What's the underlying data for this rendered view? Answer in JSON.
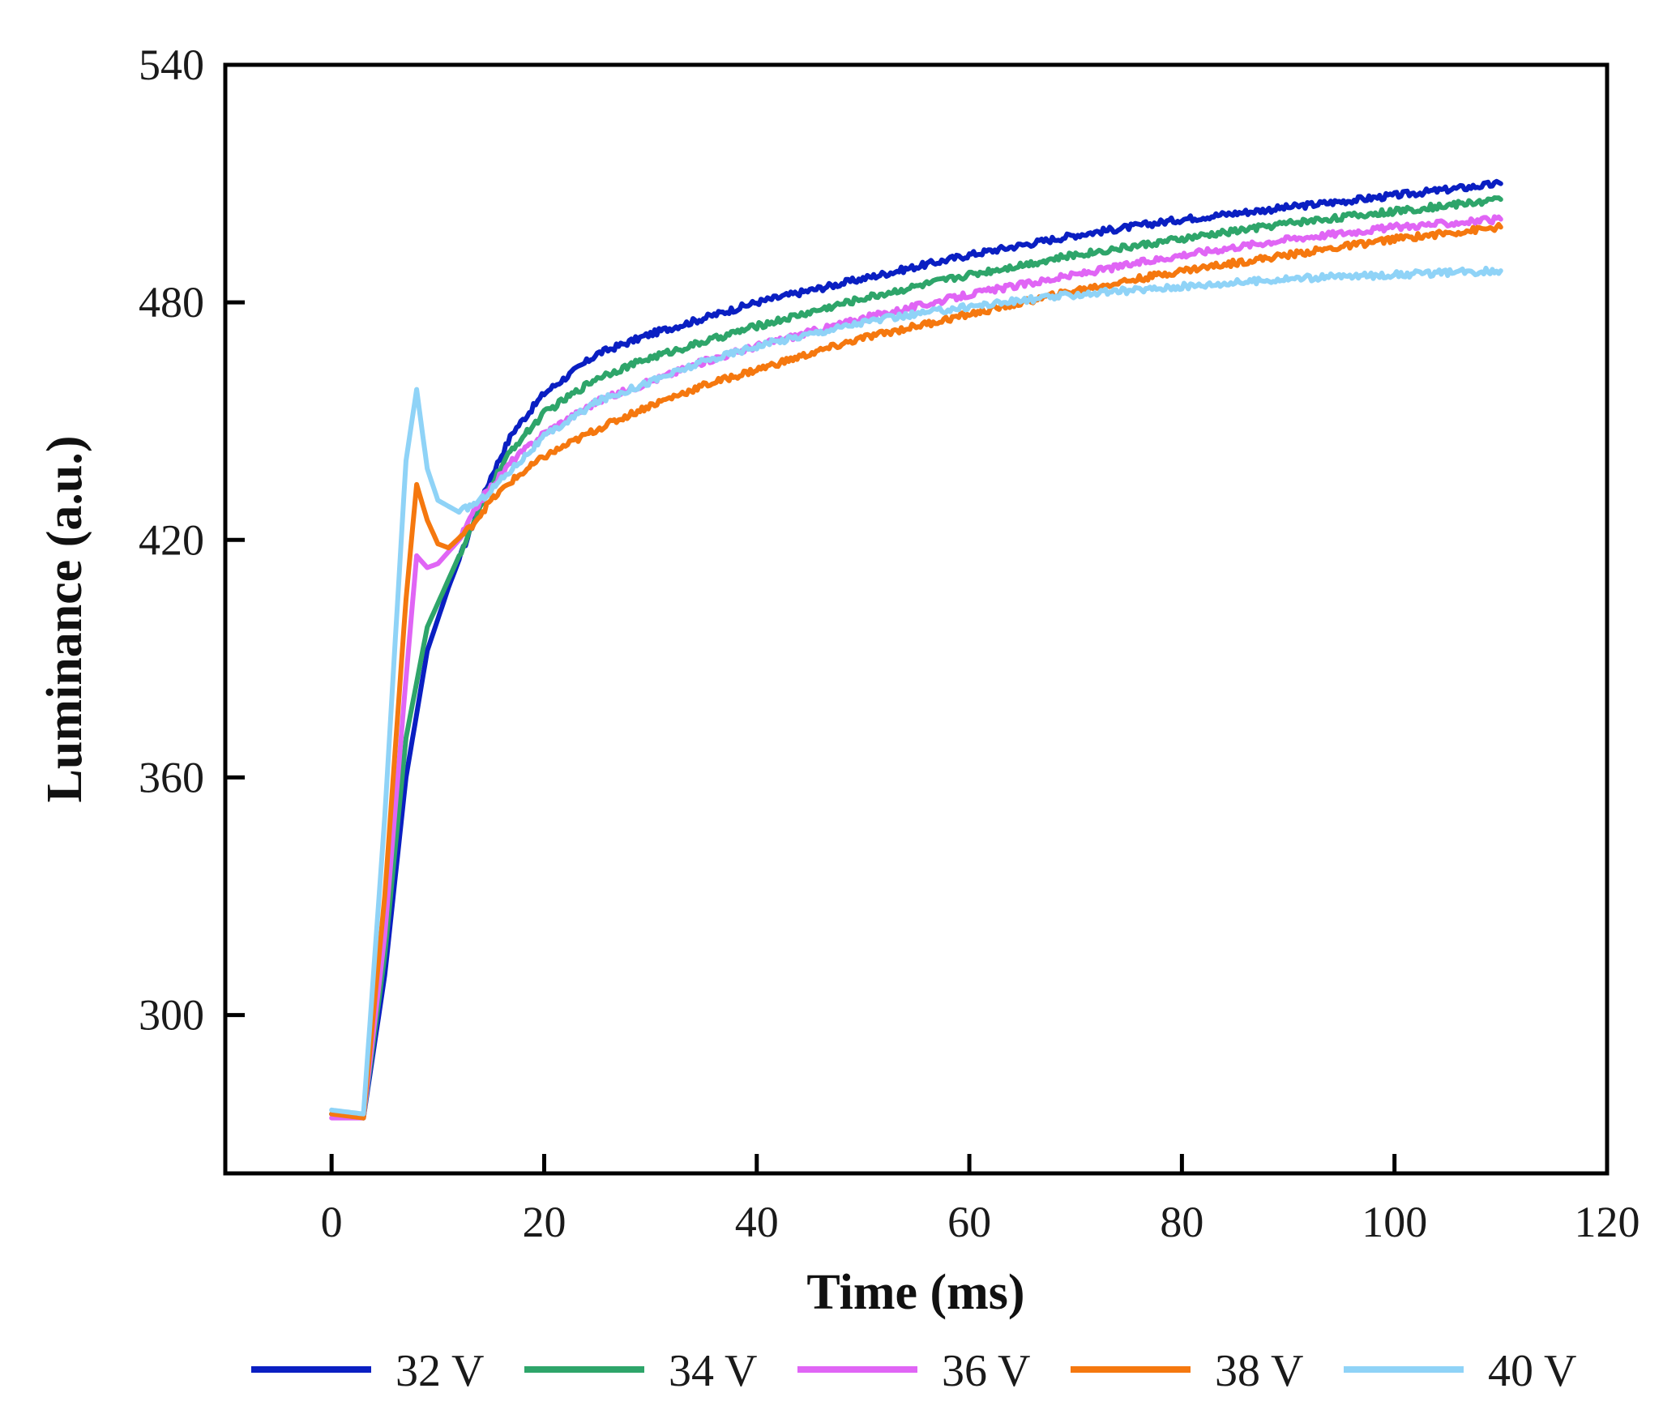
{
  "chart_data": {
    "type": "line",
    "title": "",
    "xlabel": "Time (ms)",
    "ylabel": "Luminance (a.u.)",
    "xlim": [
      -10,
      120
    ],
    "ylim": [
      260,
      540
    ],
    "xticks": [
      0,
      20,
      40,
      60,
      80,
      100,
      120
    ],
    "yticks": [
      300,
      360,
      420,
      480,
      540
    ],
    "grid": false,
    "legend_position": "bottom",
    "series": [
      {
        "name": "32 V",
        "color": "#0a1fc2",
        "points": [
          [
            0,
            275
          ],
          [
            3,
            274
          ],
          [
            5,
            310
          ],
          [
            7,
            360
          ],
          [
            9,
            392
          ],
          [
            11,
            408
          ],
          [
            13,
            422
          ],
          [
            15,
            436
          ],
          [
            17,
            447
          ],
          [
            20,
            457
          ],
          [
            25,
            467
          ],
          [
            30,
            472
          ],
          [
            35,
            476
          ],
          [
            40,
            480
          ],
          [
            50,
            486
          ],
          [
            60,
            492
          ],
          [
            70,
            497
          ],
          [
            80,
            501
          ],
          [
            90,
            504
          ],
          [
            100,
            507
          ],
          [
            110,
            510
          ]
        ]
      },
      {
        "name": "34 V",
        "color": "#2ea56a",
        "points": [
          [
            0,
            275
          ],
          [
            3,
            274
          ],
          [
            5,
            315
          ],
          [
            7,
            370
          ],
          [
            9,
            398
          ],
          [
            11,
            410
          ],
          [
            13,
            422
          ],
          [
            15,
            434
          ],
          [
            17,
            443
          ],
          [
            20,
            452
          ],
          [
            25,
            461
          ],
          [
            30,
            466
          ],
          [
            35,
            470
          ],
          [
            40,
            474
          ],
          [
            50,
            481
          ],
          [
            60,
            487
          ],
          [
            70,
            492
          ],
          [
            80,
            496
          ],
          [
            90,
            500
          ],
          [
            100,
            503
          ],
          [
            110,
            506
          ]
        ]
      },
      {
        "name": "36 V",
        "color": "#e065f5",
        "points": [
          [
            0,
            274
          ],
          [
            3,
            274
          ],
          [
            5,
            320
          ],
          [
            7,
            385
          ],
          [
            8,
            416
          ],
          [
            9,
            413
          ],
          [
            10,
            414
          ],
          [
            12,
            420
          ],
          [
            14,
            430
          ],
          [
            17,
            440
          ],
          [
            20,
            447
          ],
          [
            25,
            455
          ],
          [
            30,
            460
          ],
          [
            35,
            465
          ],
          [
            40,
            469
          ],
          [
            50,
            476
          ],
          [
            60,
            482
          ],
          [
            70,
            487
          ],
          [
            80,
            492
          ],
          [
            90,
            496
          ],
          [
            100,
            499
          ],
          [
            110,
            501
          ]
        ]
      },
      {
        "name": "38 V",
        "color": "#f5780f",
        "points": [
          [
            0,
            275
          ],
          [
            3,
            274
          ],
          [
            5,
            330
          ],
          [
            7,
            405
          ],
          [
            8,
            434
          ],
          [
            9,
            425
          ],
          [
            10,
            419
          ],
          [
            11,
            418
          ],
          [
            13,
            423
          ],
          [
            15,
            430
          ],
          [
            17,
            435
          ],
          [
            20,
            441
          ],
          [
            25,
            448
          ],
          [
            30,
            454
          ],
          [
            35,
            459
          ],
          [
            40,
            463
          ],
          [
            50,
            471
          ],
          [
            60,
            477
          ],
          [
            70,
            483
          ],
          [
            80,
            488
          ],
          [
            90,
            492
          ],
          [
            100,
            496
          ],
          [
            110,
            499
          ]
        ]
      },
      {
        "name": "40 V",
        "color": "#8fd3f7",
        "points": [
          [
            0,
            276
          ],
          [
            3,
            275
          ],
          [
            5,
            350
          ],
          [
            7,
            440
          ],
          [
            8,
            458
          ],
          [
            9,
            438
          ],
          [
            10,
            430
          ],
          [
            12,
            427
          ],
          [
            14,
            430
          ],
          [
            17,
            438
          ],
          [
            20,
            446
          ],
          [
            25,
            455
          ],
          [
            30,
            460
          ],
          [
            35,
            465
          ],
          [
            40,
            469
          ],
          [
            50,
            475
          ],
          [
            60,
            479
          ],
          [
            70,
            482
          ],
          [
            80,
            484
          ],
          [
            90,
            486
          ],
          [
            100,
            487
          ],
          [
            110,
            488
          ]
        ]
      }
    ]
  }
}
